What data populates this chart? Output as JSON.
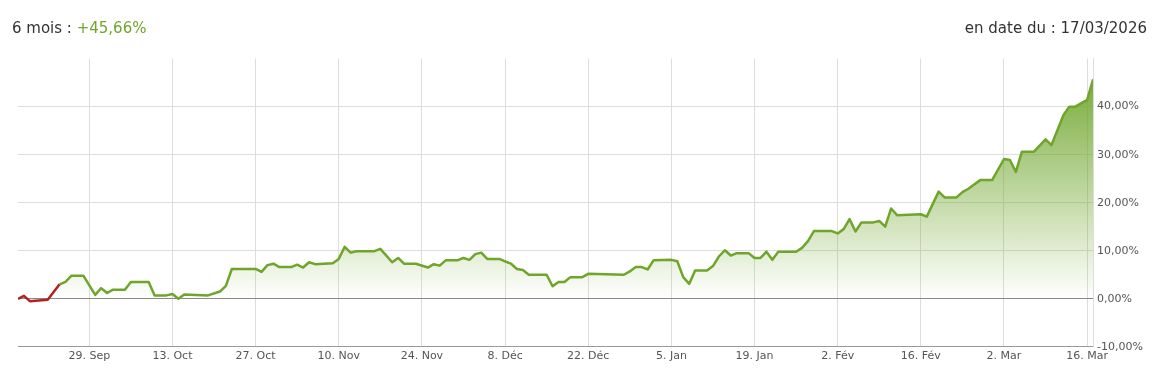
{
  "chart_data": {
    "type": "area",
    "title": "6 mois :",
    "subtitle": "+45,66%",
    "annotations": [
      "en date du : 17/03/2026"
    ],
    "x": [
      "2025-09-17",
      "2025-09-18",
      "2025-09-19",
      "2025-09-22",
      "2025-09-24",
      "2025-09-25",
      "2025-09-26",
      "2025-09-28",
      "2025-09-30",
      "2025-10-01",
      "2025-10-02",
      "2025-10-03",
      "2025-10-05",
      "2025-10-06",
      "2025-10-09",
      "2025-10-10",
      "2025-10-12",
      "2025-10-13",
      "2025-10-14",
      "2025-10-15",
      "2025-10-19",
      "2025-10-21",
      "2025-10-22",
      "2025-10-23",
      "2025-10-27",
      "2025-10-28",
      "2025-10-29",
      "2025-10-30",
      "2025-10-31",
      "2025-11-02",
      "2025-11-03",
      "2025-11-04",
      "2025-11-05",
      "2025-11-06",
      "2025-11-09",
      "2025-11-10",
      "2025-11-11",
      "2025-11-12",
      "2025-11-13",
      "2025-11-16",
      "2025-11-17",
      "2025-11-19",
      "2025-11-20",
      "2025-11-21",
      "2025-11-23",
      "2025-11-25",
      "2025-11-26",
      "2025-11-27",
      "2025-11-28",
      "2025-11-30",
      "2025-12-01",
      "2025-12-02",
      "2025-12-03",
      "2025-12-04",
      "2025-12-05",
      "2025-12-07",
      "2025-12-09",
      "2025-12-10",
      "2025-12-11",
      "2025-12-12",
      "2025-12-15",
      "2025-12-16",
      "2025-12-17",
      "2025-12-18",
      "2025-12-19",
      "2025-12-21",
      "2025-12-22",
      "2025-12-28",
      "2025-12-29",
      "2025-12-30",
      "2025-12-31",
      "2026-01-01",
      "2026-01-02",
      "2026-01-05",
      "2026-01-06",
      "2026-01-07",
      "2026-01-08",
      "2026-01-09",
      "2026-01-11",
      "2026-01-12",
      "2026-01-13",
      "2026-01-14",
      "2026-01-15",
      "2026-01-16",
      "2026-01-18",
      "2026-01-19",
      "2026-01-20",
      "2026-01-21",
      "2026-01-22",
      "2026-01-23",
      "2026-01-26",
      "2026-01-27",
      "2026-01-28",
      "2026-01-29",
      "2026-02-01",
      "2026-02-02",
      "2026-02-03",
      "2026-02-04",
      "2026-02-05",
      "2026-02-06",
      "2026-02-08",
      "2026-02-09",
      "2026-02-10",
      "2026-02-11",
      "2026-02-12",
      "2026-02-16",
      "2026-02-17",
      "2026-02-19",
      "2026-02-20",
      "2026-02-22",
      "2026-02-23",
      "2026-02-24",
      "2026-02-26",
      "2026-02-28",
      "2026-03-02",
      "2026-03-03",
      "2026-03-04",
      "2026-03-05",
      "2026-03-07",
      "2026-03-09",
      "2026-03-10",
      "2026-03-12",
      "2026-03-13",
      "2026-03-14",
      "2026-03-16",
      "2026-03-17"
    ],
    "series": [
      {
        "color": "#6ea52a",
        "values": [
          0,
          0.6,
          -0.5,
          -0.2,
          3.0,
          3.5,
          4.8,
          4.8,
          0.8,
          2.2,
          1.2,
          1.9,
          1.9,
          3.5,
          3.5,
          0.7,
          0.7,
          1.0,
          0.0,
          0.9,
          0.7,
          1.5,
          2.7,
          6.2,
          6.2,
          5.6,
          7.0,
          7.3,
          6.6,
          6.6,
          7.1,
          6.5,
          7.6,
          7.2,
          7.4,
          8.3,
          10.8,
          9.6,
          9.9,
          9.9,
          10.4,
          7.6,
          8.5,
          7.3,
          7.3,
          6.5,
          7.2,
          6.9,
          8.0,
          8.0,
          8.5,
          8.1,
          9.3,
          9.6,
          8.3,
          8.3,
          7.3,
          6.2,
          6.0,
          5.0,
          5.0,
          2.6,
          3.5,
          3.5,
          4.5,
          4.5,
          5.2,
          5.0,
          5.7,
          6.6,
          6.6,
          6.1,
          8.0,
          8.1,
          7.8,
          4.5,
          3.1,
          5.9,
          5.9,
          6.8,
          8.8,
          10.1,
          9.0,
          9.5,
          9.5,
          8.5,
          8.5,
          9.8,
          8.1,
          9.8,
          9.8,
          10.6,
          12.0,
          14.1,
          14.1,
          13.6,
          14.5,
          16.6,
          14.0,
          15.9,
          15.9,
          16.2,
          15.0,
          18.8,
          17.4,
          17.6,
          17.1,
          22.3,
          21.1,
          21.1,
          22.2,
          22.9,
          24.7,
          24.7,
          29.1,
          28.9,
          26.4,
          30.6,
          30.6,
          33.2,
          32.0,
          38.2,
          40.0,
          40.0,
          41.4,
          45.7
        ],
        "colors": [
          "#6ea52a",
          "#b22222",
          "#b22222",
          "#b22222",
          "#6ea52a",
          "#6ea52a",
          "#6ea52a",
          "#6ea52a",
          "#6ea52a",
          "#6ea52a",
          "#6ea52a",
          "#6ea52a",
          "#6ea52a",
          "#6ea52a",
          "#6ea52a",
          "#6ea52a",
          "#6ea52a",
          "#6ea52a",
          "#6ea52a",
          "#6ea52a",
          "#6ea52a",
          "#6ea52a",
          "#6ea52a",
          "#6ea52a",
          "#6ea52a",
          "#6ea52a",
          "#6ea52a",
          "#6ea52a",
          "#6ea52a",
          "#6ea52a",
          "#6ea52a",
          "#6ea52a",
          "#6ea52a",
          "#6ea52a",
          "#6ea52a",
          "#6ea52a",
          "#6ea52a",
          "#6ea52a",
          "#6ea52a",
          "#6ea52a",
          "#6ea52a",
          "#6ea52a",
          "#6ea52a",
          "#6ea52a",
          "#6ea52a",
          "#6ea52a",
          "#6ea52a",
          "#6ea52a",
          "#6ea52a",
          "#6ea52a",
          "#6ea52a",
          "#6ea52a",
          "#6ea52a",
          "#6ea52a",
          "#6ea52a",
          "#6ea52a",
          "#6ea52a",
          "#6ea52a",
          "#6ea52a",
          "#6ea52a",
          "#6ea52a",
          "#6ea52a",
          "#6ea52a",
          "#6ea52a",
          "#6ea52a",
          "#6ea52a",
          "#6ea52a",
          "#6ea52a",
          "#6ea52a",
          "#6ea52a",
          "#6ea52a",
          "#6ea52a",
          "#6ea52a",
          "#6ea52a",
          "#6ea52a",
          "#6ea52a",
          "#6ea52a",
          "#6ea52a",
          "#6ea52a",
          "#6ea52a",
          "#6ea52a",
          "#6ea52a",
          "#6ea52a",
          "#6ea52a",
          "#6ea52a",
          "#6ea52a",
          "#6ea52a",
          "#6ea52a",
          "#6ea52a",
          "#6ea52a",
          "#6ea52a",
          "#6ea52a",
          "#6ea52a",
          "#6ea52a",
          "#6ea52a",
          "#6ea52a",
          "#6ea52a",
          "#6ea52a",
          "#6ea52a",
          "#6ea52a",
          "#6ea52a",
          "#6ea52a",
          "#6ea52a",
          "#6ea52a",
          "#6ea52a",
          "#6ea52a",
          "#6ea52a",
          "#6ea52a",
          "#6ea52a",
          "#6ea52a",
          "#6ea52a",
          "#6ea52a",
          "#6ea52a",
          "#6ea52a",
          "#6ea52a",
          "#6ea52a",
          "#6ea52a",
          "#6ea52a",
          "#6ea52a",
          "#6ea52a",
          "#6ea52a",
          "#6ea52a",
          "#6ea52a",
          "#6ea52a",
          "#6ea52a",
          "#6ea52a"
        ]
      }
    ],
    "xlim": [
      "2025-09-17",
      "2026-03-17"
    ],
    "xticks": [
      {
        "value": "2025-09-29",
        "label": "29. Sep"
      },
      {
        "value": "2025-10-13",
        "label": "13. Oct"
      },
      {
        "value": "2025-10-27",
        "label": "27. Oct"
      },
      {
        "value": "2025-11-10",
        "label": "10. Nov"
      },
      {
        "value": "2025-11-24",
        "label": "24. Nov"
      },
      {
        "value": "2025-12-08",
        "label": "8. Déc"
      },
      {
        "value": "2025-12-22",
        "label": "22. Déc"
      },
      {
        "value": "2026-01-05",
        "label": "5. Jan"
      },
      {
        "value": "2026-01-19",
        "label": "19. Jan"
      },
      {
        "value": "2026-02-02",
        "label": "2. Fév"
      },
      {
        "value": "2026-02-16",
        "label": "16. Fév"
      },
      {
        "value": "2026-03-02",
        "label": "2. Mar"
      },
      {
        "value": "2026-03-16",
        "label": "16. Mar"
      }
    ],
    "ylim": [
      -10,
      50
    ],
    "yticks": [
      {
        "value": -10,
        "label": "-10,00%"
      },
      {
        "value": 0,
        "label": "0,00%"
      },
      {
        "value": 10,
        "label": "10,00%"
      },
      {
        "value": 20,
        "label": "20,00%"
      },
      {
        "value": 30,
        "label": "30,00%"
      },
      {
        "value": 40,
        "label": "40,00%"
      }
    ],
    "grid": true,
    "legend": false,
    "marker": "none",
    "line_style": "solid"
  }
}
